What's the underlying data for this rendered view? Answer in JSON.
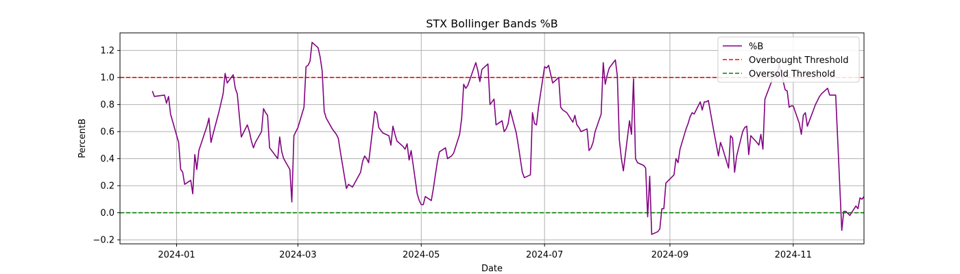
{
  "chart_data": {
    "type": "line",
    "title": "STX Bollinger Bands %B",
    "xlabel": "Date",
    "ylabel": "PercentB",
    "x_ticks": [
      "2024-01",
      "2024-03",
      "2024-05",
      "2024-07",
      "2024-09",
      "2024-11"
    ],
    "y_ticks": [
      "−0.2",
      "0.0",
      "0.2",
      "0.4",
      "0.6",
      "0.8",
      "1.0",
      "1.2"
    ],
    "xlim": [
      "2023-12-04",
      "2024-12-06"
    ],
    "ylim": [
      -0.23,
      1.33
    ],
    "grid": true,
    "legend_position": "top-right",
    "series": [
      {
        "name": "%B",
        "color": "#800080",
        "style": "solid",
        "points": [
          [
            "2023-12-20",
            0.9
          ],
          [
            "2023-12-21",
            0.86
          ],
          [
            "2023-12-26",
            0.87
          ],
          [
            "2023-12-27",
            0.81
          ],
          [
            "2023-12-28",
            0.86
          ],
          [
            "2023-12-29",
            0.73
          ],
          [
            "2024-01-02",
            0.52
          ],
          [
            "2024-01-03",
            0.32
          ],
          [
            "2024-01-04",
            0.3
          ],
          [
            "2024-01-05",
            0.21
          ],
          [
            "2024-01-08",
            0.24
          ],
          [
            "2024-01-09",
            0.14
          ],
          [
            "2024-01-10",
            0.43
          ],
          [
            "2024-01-11",
            0.32
          ],
          [
            "2024-01-12",
            0.46
          ],
          [
            "2024-01-16",
            0.64
          ],
          [
            "2024-01-17",
            0.7
          ],
          [
            "2024-01-18",
            0.52
          ],
          [
            "2024-01-19",
            0.58
          ],
          [
            "2024-01-22",
            0.75
          ],
          [
            "2024-01-24",
            0.88
          ],
          [
            "2024-01-25",
            1.03
          ],
          [
            "2024-01-26",
            0.96
          ],
          [
            "2024-01-29",
            1.02
          ],
          [
            "2024-01-30",
            0.92
          ],
          [
            "2024-01-31",
            0.88
          ],
          [
            "2024-02-01",
            0.72
          ],
          [
            "2024-02-02",
            0.56
          ],
          [
            "2024-02-05",
            0.65
          ],
          [
            "2024-02-06",
            0.6
          ],
          [
            "2024-02-07",
            0.53
          ],
          [
            "2024-02-08",
            0.48
          ],
          [
            "2024-02-09",
            0.52
          ],
          [
            "2024-02-12",
            0.6
          ],
          [
            "2024-02-13",
            0.77
          ],
          [
            "2024-02-14",
            0.74
          ],
          [
            "2024-02-15",
            0.72
          ],
          [
            "2024-02-16",
            0.48
          ],
          [
            "2024-02-20",
            0.4
          ],
          [
            "2024-02-21",
            0.56
          ],
          [
            "2024-02-22",
            0.45
          ],
          [
            "2024-02-23",
            0.4
          ],
          [
            "2024-02-26",
            0.32
          ],
          [
            "2024-02-27",
            0.08
          ],
          [
            "2024-02-28",
            0.57
          ],
          [
            "2024-02-29",
            0.6
          ],
          [
            "2024-03-01",
            0.63
          ],
          [
            "2024-03-04",
            0.78
          ],
          [
            "2024-03-05",
            1.08
          ],
          [
            "2024-03-06",
            1.09
          ],
          [
            "2024-03-07",
            1.12
          ],
          [
            "2024-03-08",
            1.26
          ],
          [
            "2024-03-11",
            1.22
          ],
          [
            "2024-03-12",
            1.15
          ],
          [
            "2024-03-13",
            1.05
          ],
          [
            "2024-03-14",
            0.75
          ],
          [
            "2024-03-15",
            0.7
          ],
          [
            "2024-03-18",
            0.62
          ],
          [
            "2024-03-19",
            0.6
          ],
          [
            "2024-03-20",
            0.58
          ],
          [
            "2024-03-21",
            0.55
          ],
          [
            "2024-03-22",
            0.45
          ],
          [
            "2024-03-25",
            0.18
          ],
          [
            "2024-03-26",
            0.21
          ],
          [
            "2024-03-27",
            0.2
          ],
          [
            "2024-03-28",
            0.19
          ],
          [
            "2024-04-01",
            0.3
          ],
          [
            "2024-04-02",
            0.38
          ],
          [
            "2024-04-03",
            0.42
          ],
          [
            "2024-04-04",
            0.4
          ],
          [
            "2024-04-05",
            0.37
          ],
          [
            "2024-04-08",
            0.75
          ],
          [
            "2024-04-09",
            0.73
          ],
          [
            "2024-04-10",
            0.63
          ],
          [
            "2024-04-11",
            0.61
          ],
          [
            "2024-04-12",
            0.59
          ],
          [
            "2024-04-15",
            0.57
          ],
          [
            "2024-04-16",
            0.5
          ],
          [
            "2024-04-17",
            0.64
          ],
          [
            "2024-04-18",
            0.58
          ],
          [
            "2024-04-19",
            0.53
          ],
          [
            "2024-04-22",
            0.49
          ],
          [
            "2024-04-23",
            0.47
          ],
          [
            "2024-04-24",
            0.51
          ],
          [
            "2024-04-25",
            0.39
          ],
          [
            "2024-04-26",
            0.46
          ],
          [
            "2024-04-29",
            0.14
          ],
          [
            "2024-04-30",
            0.09
          ],
          [
            "2024-05-01",
            0.06
          ],
          [
            "2024-05-02",
            0.06
          ],
          [
            "2024-05-03",
            0.12
          ],
          [
            "2024-05-06",
            0.09
          ],
          [
            "2024-05-07",
            0.18
          ],
          [
            "2024-05-08",
            0.28
          ],
          [
            "2024-05-09",
            0.38
          ],
          [
            "2024-05-10",
            0.45
          ],
          [
            "2024-05-13",
            0.48
          ],
          [
            "2024-05-14",
            0.4
          ],
          [
            "2024-05-15",
            0.41
          ],
          [
            "2024-05-16",
            0.42
          ],
          [
            "2024-05-17",
            0.44
          ],
          [
            "2024-05-20",
            0.58
          ],
          [
            "2024-05-21",
            0.7
          ],
          [
            "2024-05-22",
            0.95
          ],
          [
            "2024-05-23",
            0.92
          ],
          [
            "2024-05-24",
            0.94
          ],
          [
            "2024-05-28",
            1.11
          ],
          [
            "2024-05-29",
            1.05
          ],
          [
            "2024-05-30",
            0.97
          ],
          [
            "2024-05-31",
            1.06
          ],
          [
            "2024-06-03",
            1.1
          ],
          [
            "2024-06-04",
            0.8
          ],
          [
            "2024-06-05",
            0.82
          ],
          [
            "2024-06-06",
            0.84
          ],
          [
            "2024-06-07",
            0.65
          ],
          [
            "2024-06-10",
            0.68
          ],
          [
            "2024-06-11",
            0.6
          ],
          [
            "2024-06-12",
            0.62
          ],
          [
            "2024-06-13",
            0.66
          ],
          [
            "2024-06-14",
            0.76
          ],
          [
            "2024-06-17",
            0.59
          ],
          [
            "2024-06-18",
            0.5
          ],
          [
            "2024-06-20",
            0.3
          ],
          [
            "2024-06-21",
            0.26
          ],
          [
            "2024-06-24",
            0.28
          ],
          [
            "2024-06-25",
            0.74
          ],
          [
            "2024-06-26",
            0.66
          ],
          [
            "2024-06-27",
            0.65
          ],
          [
            "2024-06-28",
            0.78
          ],
          [
            "2024-07-01",
            1.08
          ],
          [
            "2024-07-02",
            1.07
          ],
          [
            "2024-07-03",
            1.09
          ],
          [
            "2024-07-05",
            0.96
          ],
          [
            "2024-07-08",
            1.0
          ],
          [
            "2024-07-09",
            0.78
          ],
          [
            "2024-07-10",
            0.76
          ],
          [
            "2024-07-11",
            0.75
          ],
          [
            "2024-07-12",
            0.74
          ],
          [
            "2024-07-15",
            0.67
          ],
          [
            "2024-07-16",
            0.72
          ],
          [
            "2024-07-17",
            0.65
          ],
          [
            "2024-07-18",
            0.63
          ],
          [
            "2024-07-19",
            0.6
          ],
          [
            "2024-07-22",
            0.62
          ],
          [
            "2024-07-23",
            0.46
          ],
          [
            "2024-07-24",
            0.48
          ],
          [
            "2024-07-25",
            0.52
          ],
          [
            "2024-07-26",
            0.6
          ],
          [
            "2024-07-29",
            0.73
          ],
          [
            "2024-07-30",
            1.11
          ],
          [
            "2024-07-31",
            0.95
          ],
          [
            "2024-08-01",
            1.02
          ],
          [
            "2024-08-02",
            1.07
          ],
          [
            "2024-08-05",
            1.13
          ],
          [
            "2024-08-06",
            1.01
          ],
          [
            "2024-08-07",
            0.54
          ],
          [
            "2024-08-08",
            0.4
          ],
          [
            "2024-08-09",
            0.31
          ],
          [
            "2024-08-12",
            0.68
          ],
          [
            "2024-08-13",
            0.58
          ],
          [
            "2024-08-14",
            0.99
          ],
          [
            "2024-08-15",
            0.4
          ],
          [
            "2024-08-16",
            0.37
          ],
          [
            "2024-08-19",
            0.35
          ],
          [
            "2024-08-20",
            0.33
          ],
          [
            "2024-08-21",
            -0.03
          ],
          [
            "2024-08-22",
            0.27
          ],
          [
            "2024-08-23",
            -0.16
          ],
          [
            "2024-08-26",
            -0.14
          ],
          [
            "2024-08-27",
            -0.12
          ],
          [
            "2024-08-28",
            0.03
          ],
          [
            "2024-08-29",
            0.03
          ],
          [
            "2024-08-30",
            0.22
          ],
          [
            "2024-09-03",
            0.28
          ],
          [
            "2024-09-04",
            0.4
          ],
          [
            "2024-09-05",
            0.37
          ],
          [
            "2024-09-06",
            0.47
          ],
          [
            "2024-09-09",
            0.62
          ],
          [
            "2024-09-10",
            0.66
          ],
          [
            "2024-09-11",
            0.71
          ],
          [
            "2024-09-12",
            0.74
          ],
          [
            "2024-09-13",
            0.73
          ],
          [
            "2024-09-16",
            0.82
          ],
          [
            "2024-09-17",
            0.76
          ],
          [
            "2024-09-18",
            0.82
          ],
          [
            "2024-09-19",
            0.82
          ],
          [
            "2024-09-20",
            0.83
          ],
          [
            "2024-09-23",
            0.58
          ],
          [
            "2024-09-24",
            0.5
          ],
          [
            "2024-09-25",
            0.42
          ],
          [
            "2024-09-26",
            0.52
          ],
          [
            "2024-09-27",
            0.48
          ],
          [
            "2024-09-30",
            0.33
          ],
          [
            "2024-10-01",
            0.57
          ],
          [
            "2024-10-02",
            0.55
          ],
          [
            "2024-10-03",
            0.3
          ],
          [
            "2024-10-04",
            0.42
          ],
          [
            "2024-10-07",
            0.6
          ],
          [
            "2024-10-08",
            0.63
          ],
          [
            "2024-10-09",
            0.64
          ],
          [
            "2024-10-10",
            0.43
          ],
          [
            "2024-10-11",
            0.57
          ],
          [
            "2024-10-14",
            0.52
          ],
          [
            "2024-10-15",
            0.5
          ],
          [
            "2024-10-16",
            0.58
          ],
          [
            "2024-10-17",
            0.47
          ],
          [
            "2024-10-18",
            0.84
          ],
          [
            "2024-10-21",
            0.96
          ],
          [
            "2024-10-22",
            1.02
          ],
          [
            "2024-10-23",
            1.03
          ],
          [
            "2024-10-24",
            1.02
          ],
          [
            "2024-10-25",
            1.1
          ],
          [
            "2024-10-28",
            0.91
          ],
          [
            "2024-10-29",
            0.9
          ],
          [
            "2024-10-30",
            0.78
          ],
          [
            "2024-10-31",
            0.79
          ],
          [
            "2024-11-01",
            0.79
          ],
          [
            "2024-11-04",
            0.66
          ],
          [
            "2024-11-05",
            0.58
          ],
          [
            "2024-11-06",
            0.72
          ],
          [
            "2024-11-07",
            0.74
          ],
          [
            "2024-11-08",
            0.64
          ],
          [
            "2024-11-11",
            0.76
          ],
          [
            "2024-11-12",
            0.8
          ],
          [
            "2024-11-13",
            0.83
          ],
          [
            "2024-11-14",
            0.86
          ],
          [
            "2024-11-15",
            0.88
          ],
          [
            "2024-11-18",
            0.92
          ],
          [
            "2024-11-19",
            0.87
          ],
          [
            "2024-11-20",
            0.87
          ],
          [
            "2024-11-21",
            0.87
          ],
          [
            "2024-11-22",
            0.87
          ],
          [
            "2024-11-25",
            -0.13
          ],
          [
            "2024-11-26",
            0.01
          ],
          [
            "2024-11-27",
            0.01
          ],
          [
            "2024-11-29",
            -0.02
          ],
          [
            "2024-12-02",
            0.05
          ],
          [
            "2024-12-03",
            0.03
          ],
          [
            "2024-12-04",
            0.11
          ],
          [
            "2024-12-05",
            0.1
          ],
          [
            "2024-12-06",
            0.12
          ]
        ]
      },
      {
        "name": "Overbought Threshold",
        "color": "#ff0000",
        "style": "dashed",
        "value": 1.0
      },
      {
        "name": "Oversold Threshold",
        "color": "#008000",
        "style": "dashed",
        "value": 0.0
      }
    ]
  }
}
